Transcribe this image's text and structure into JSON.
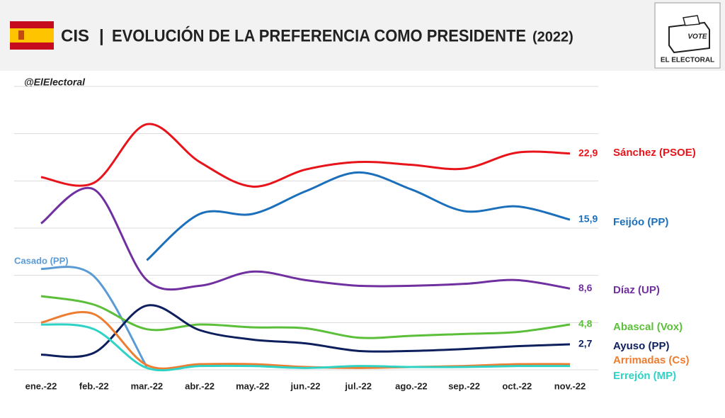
{
  "header": {
    "brand": "CIS",
    "separator": "|",
    "title": "EVOLUCIÓN DE LA PREFERENCIA COMO PRESIDENTE",
    "year": "(2022)",
    "logo_text": "VOTE",
    "logo_name": "EL ELECTORAL"
  },
  "chart_data": {
    "type": "line",
    "watermark": "@ElElectoral",
    "categories": [
      "ene.-22",
      "feb.-22",
      "mar.-22",
      "abr.-22",
      "may.-22",
      "jun.-22",
      "jul.-22",
      "ago.-22",
      "sep.-22",
      "oct.-22",
      "nov.-22"
    ],
    "ylim": [
      0,
      30
    ],
    "yticks": [
      0,
      5,
      10,
      15,
      20,
      25,
      30
    ],
    "grid": true,
    "series": [
      {
        "name": "Sánchez (PSOE)",
        "color": "#e8141b",
        "values": [
          20.4,
          19.8,
          26.0,
          22.0,
          19.4,
          21.2,
          22.0,
          21.7,
          21.3,
          23.0,
          22.9
        ],
        "value_labels": [
          null,
          null,
          null,
          null,
          null,
          null,
          null,
          null,
          null,
          null,
          "22,9"
        ]
      },
      {
        "name": "Feijóo (PP)",
        "color": "#1c6fba",
        "values": [
          null,
          null,
          11.6,
          16.5,
          16.5,
          18.9,
          20.9,
          19.1,
          16.8,
          17.3,
          15.9
        ],
        "value_labels": [
          null,
          null,
          null,
          null,
          null,
          null,
          null,
          null,
          null,
          null,
          "15,9"
        ]
      },
      {
        "name": "Díaz (UP)",
        "color": "#7030a0",
        "values": [
          15.5,
          19.1,
          9.5,
          8.9,
          10.4,
          9.5,
          8.9,
          8.9,
          9.1,
          9.5,
          8.6
        ],
        "value_labels": [
          null,
          null,
          null,
          null,
          null,
          null,
          null,
          null,
          null,
          null,
          "8,6"
        ]
      },
      {
        "name": "Casado (PP)",
        "color": "#5b9bd5",
        "values": [
          10.7,
          9.9,
          0.3,
          null,
          null,
          null,
          null,
          null,
          null,
          null,
          null
        ]
      },
      {
        "name": "Abascal (Vox)",
        "color": "#5cbf3a",
        "values": [
          7.8,
          6.9,
          4.3,
          4.8,
          4.5,
          4.4,
          3.4,
          3.6,
          3.8,
          4.0,
          4.8
        ],
        "value_labels": [
          null,
          null,
          null,
          null,
          null,
          null,
          null,
          null,
          null,
          null,
          "4,8"
        ]
      },
      {
        "name": "Ayuso (PP)",
        "color": "#0d1f5c",
        "values": [
          1.6,
          1.8,
          6.8,
          4.2,
          3.2,
          2.8,
          2.0,
          2.0,
          2.2,
          2.5,
          2.7
        ],
        "value_labels": [
          null,
          null,
          null,
          null,
          null,
          null,
          null,
          null,
          null,
          null,
          "2,7"
        ]
      },
      {
        "name": "Arrimadas (Cs)",
        "color": "#ed7d31",
        "values": [
          5.0,
          5.9,
          0.5,
          0.6,
          0.6,
          0.3,
          0.2,
          0.3,
          0.4,
          0.6,
          0.6
        ]
      },
      {
        "name": "Errejón (MP)",
        "color": "#2fd3c5",
        "values": [
          4.8,
          4.3,
          0.2,
          0.4,
          0.4,
          0.2,
          0.4,
          0.3,
          0.3,
          0.4,
          0.4
        ]
      }
    ]
  }
}
